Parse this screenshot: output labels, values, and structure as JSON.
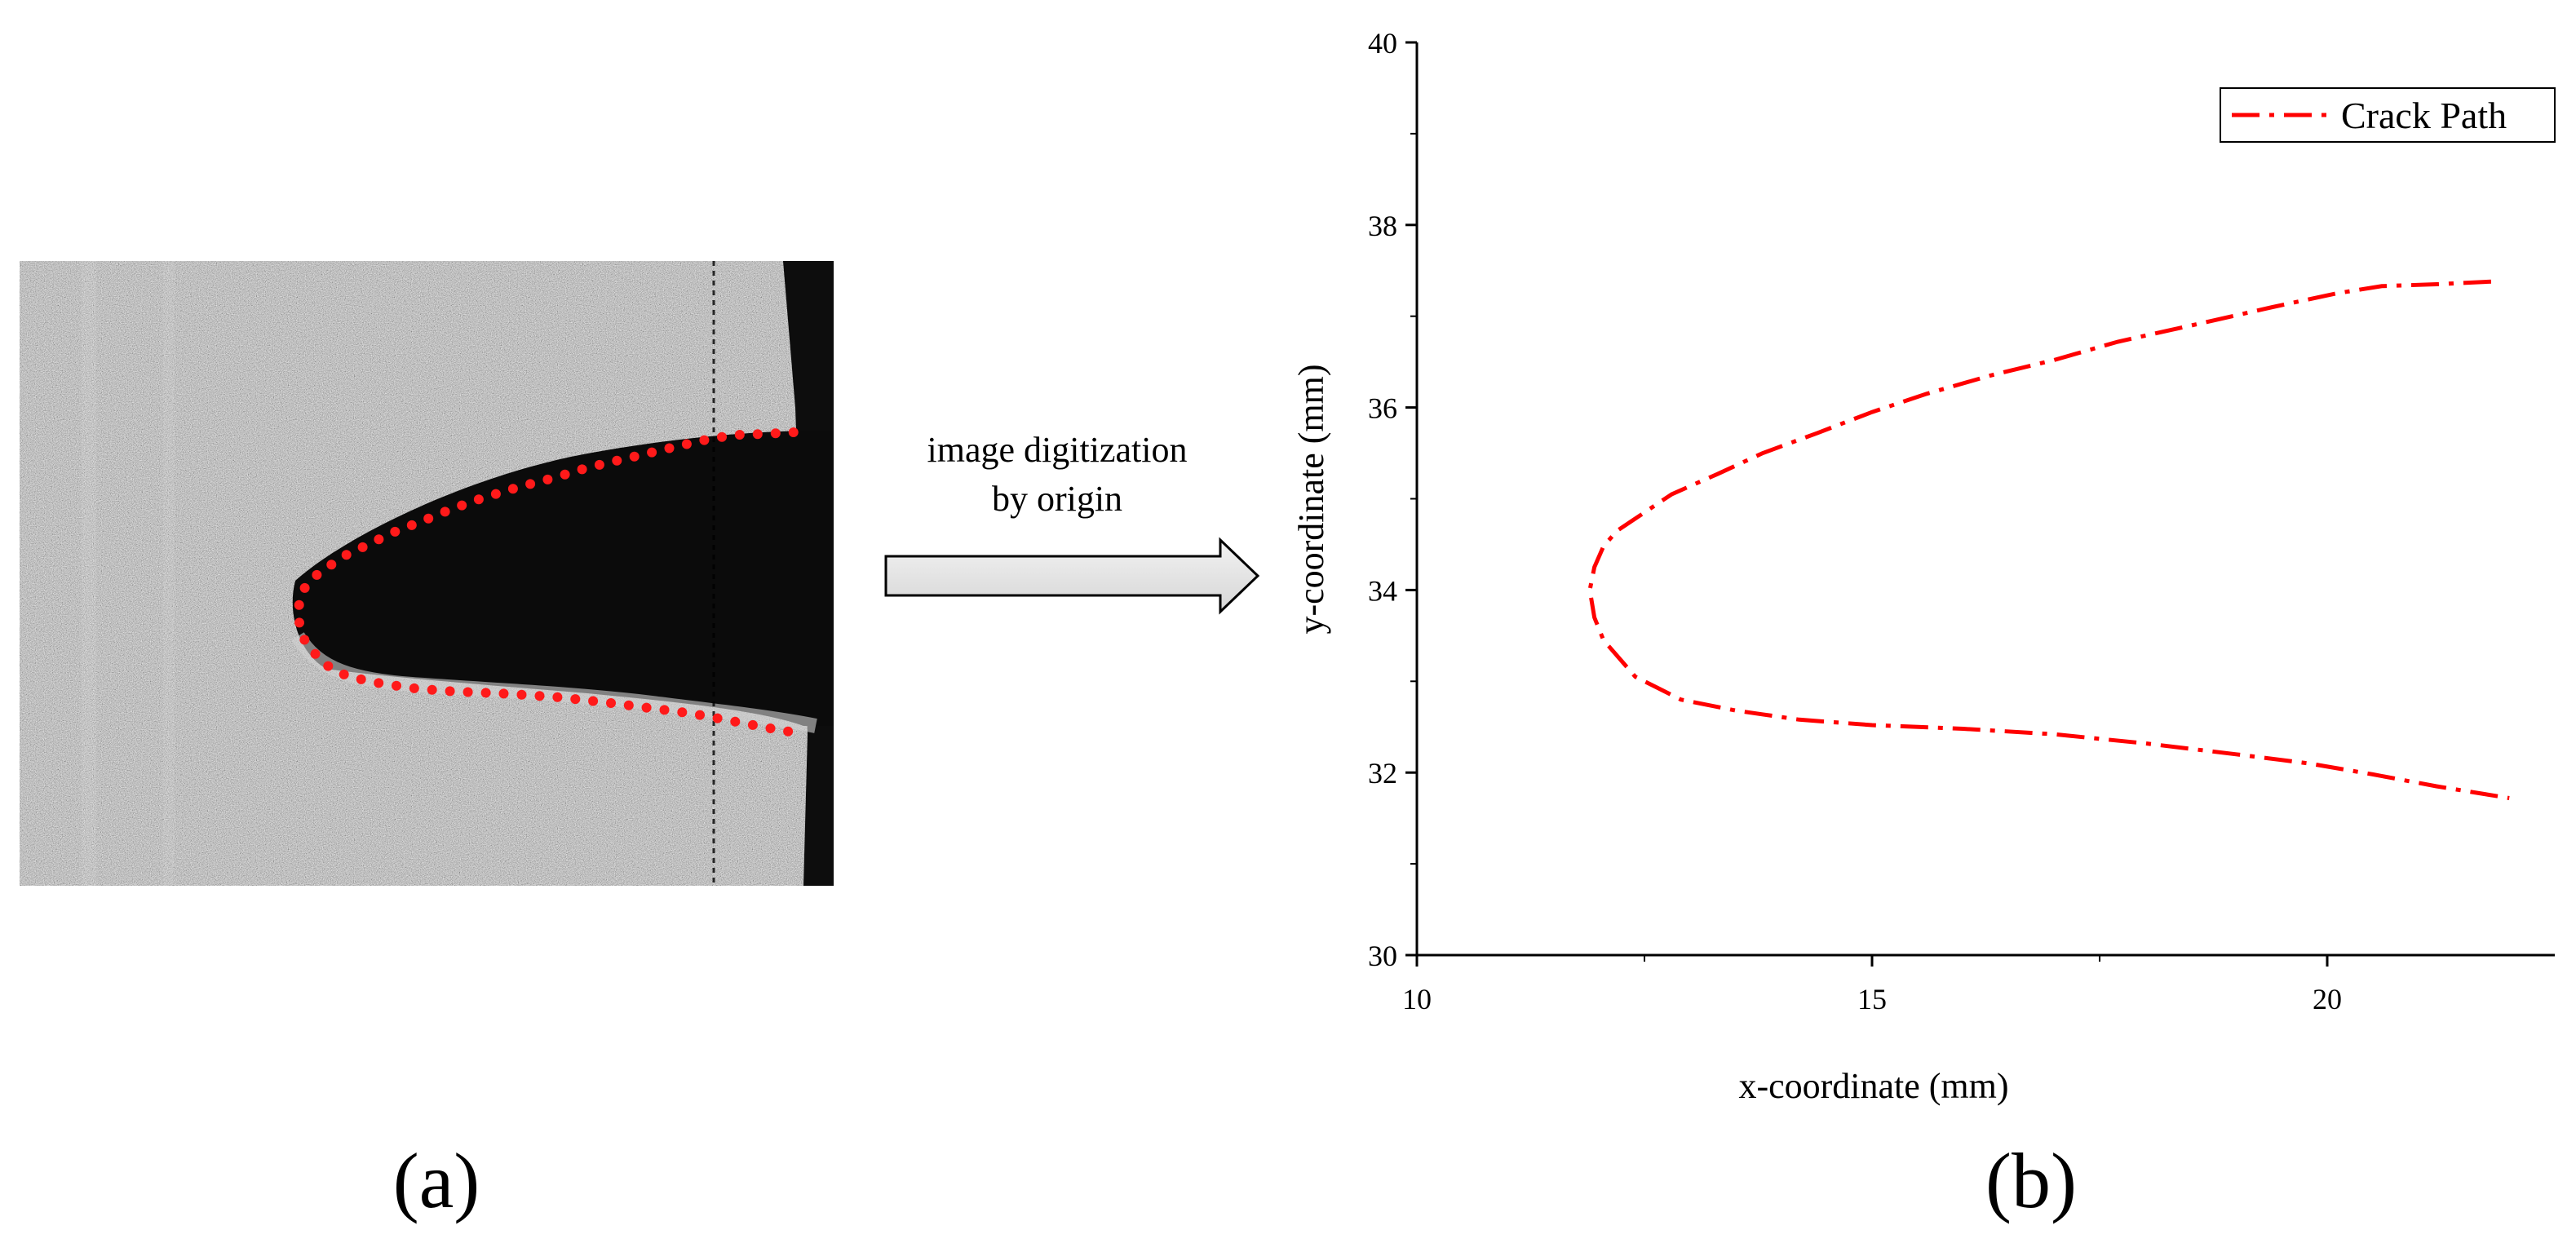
{
  "panel_a": {
    "label": "(a)",
    "image_kind": "grayscale micrograph of a notch with a crack outlined by red dots",
    "trace_color": "#ff1a1a"
  },
  "arrow": {
    "caption_line1": "image digitization",
    "caption_line2": "by origin",
    "fill": "#e6e6e6"
  },
  "panel_b": {
    "label": "(b)"
  },
  "chart_data": {
    "type": "line",
    "title": "",
    "xlabel": "x-coordinate (mm)",
    "ylabel": "y-coordinate (mm)",
    "xlim": [
      10,
      22.5
    ],
    "ylim": [
      30,
      40
    ],
    "xticks": [
      10,
      15,
      20
    ],
    "yticks": [
      30,
      32,
      34,
      36,
      38,
      40
    ],
    "grid": false,
    "legend_position": "top-right",
    "series": [
      {
        "name": "Crack Path",
        "color": "#ff0000",
        "dash": "dash-dot",
        "x": [
          21.8,
          21.2,
          20.6,
          20.1,
          19.4,
          18.6,
          17.7,
          17.0,
          16.3,
          15.6,
          15.0,
          14.4,
          13.8,
          13.3,
          12.8,
          12.5,
          12.2,
          12.05,
          11.95,
          11.9,
          11.95,
          12.05,
          12.4,
          12.9,
          13.5,
          14.2,
          15.0,
          16.0,
          17.0,
          18.0,
          19.0,
          19.8,
          20.5,
          21.2,
          22.0
        ],
        "y": [
          37.38,
          37.35,
          37.33,
          37.25,
          37.1,
          36.92,
          36.72,
          36.52,
          36.35,
          36.15,
          35.95,
          35.72,
          35.5,
          35.27,
          35.05,
          34.85,
          34.65,
          34.48,
          34.25,
          34.0,
          33.7,
          33.45,
          33.05,
          32.8,
          32.68,
          32.58,
          32.52,
          32.48,
          32.42,
          32.32,
          32.2,
          32.1,
          31.98,
          31.85,
          31.72
        ]
      }
    ]
  }
}
